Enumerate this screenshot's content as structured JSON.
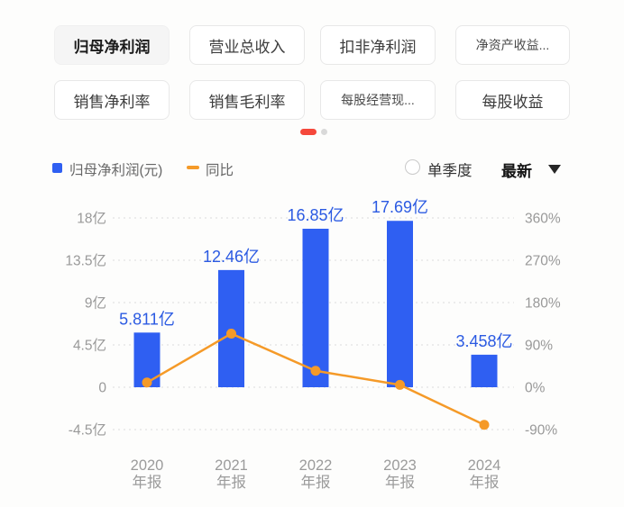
{
  "tabs": {
    "rows": [
      [
        {
          "label": "归母净利润",
          "selected": true
        },
        {
          "label": "营业总收入",
          "selected": false
        },
        {
          "label": "扣非净利润",
          "selected": false
        },
        {
          "label": "净资产收益...",
          "selected": false
        }
      ],
      [
        {
          "label": "销售净利率",
          "selected": false
        },
        {
          "label": "销售毛利率",
          "selected": false
        },
        {
          "label": "每股经营现...",
          "selected": false
        },
        {
          "label": "每股收益",
          "selected": false
        }
      ]
    ]
  },
  "pagination": {
    "active_page": 1,
    "total_pages": 2
  },
  "legend": {
    "bar_label": "归母净利润(元)",
    "line_label": "同比"
  },
  "controls": {
    "quarterly_label": "单季度",
    "latest_label": "最新"
  },
  "colors": {
    "bar_blue": "#2f5ff2",
    "label_blue": "#2b5ae2",
    "line_orange": "#f59a28",
    "active_dot_red": "#f5483b",
    "axis_gray": "#999999"
  },
  "chart_data": {
    "type": "bar",
    "title": "归母净利润(元) 与 同比",
    "categories": [
      "2020 年报",
      "2021 年报",
      "2022 年报",
      "2023 年报",
      "2024 年报"
    ],
    "categories_line1": [
      "2020",
      "2021",
      "2022",
      "2023",
      "2024"
    ],
    "categories_line2": "年报",
    "series": [
      {
        "name": "归母净利润(元)",
        "type": "bar",
        "unit": "亿",
        "values": [
          5.811,
          12.46,
          16.85,
          17.69,
          3.458
        ],
        "labels": [
          "5.811亿",
          "12.46亿",
          "16.85亿",
          "17.69亿",
          "3.458亿"
        ]
      },
      {
        "name": "同比",
        "type": "line",
        "unit": "%",
        "values": [
          10,
          114,
          35,
          5,
          -80
        ]
      }
    ],
    "left_axis": {
      "ticks": [
        "18亿",
        "13.5亿",
        "9亿",
        "4.5亿",
        "0",
        "-4.5亿"
      ],
      "values": [
        18,
        13.5,
        9,
        4.5,
        0,
        -4.5
      ],
      "range": [
        -4.5,
        18
      ]
    },
    "right_axis": {
      "ticks": [
        "360%",
        "270%",
        "180%",
        "90%",
        "0%",
        "-90%"
      ],
      "values": [
        360,
        270,
        180,
        90,
        0,
        -90
      ],
      "range": [
        -90,
        360
      ]
    },
    "grid": true,
    "legend_position": "top-left"
  }
}
